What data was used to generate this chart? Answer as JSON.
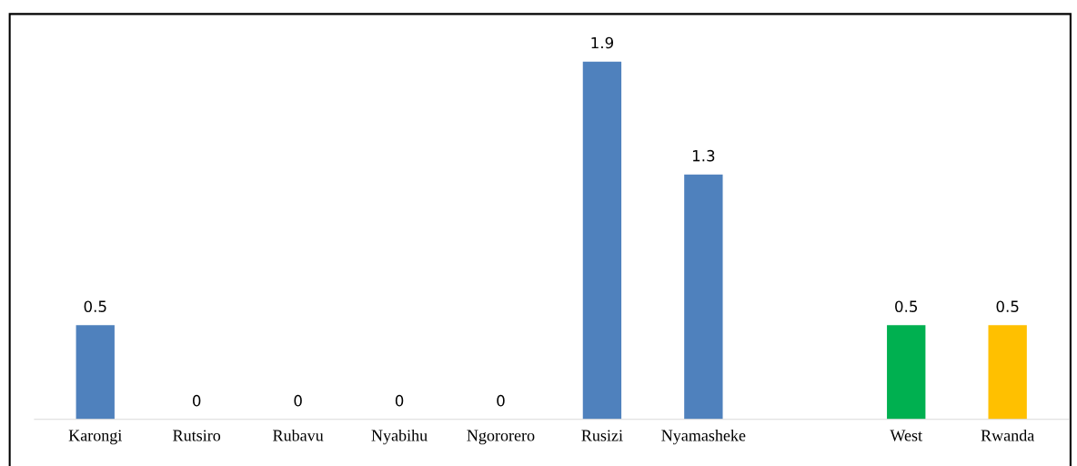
{
  "chart_data": {
    "type": "bar",
    "categories": [
      "Karongi",
      "Rutsiro",
      "Rubavu",
      "Nyabihu",
      "Ngororero",
      "Rusizi",
      "Nyamasheke",
      null,
      "West",
      "Rwanda"
    ],
    "values": [
      0.5,
      0,
      0,
      0,
      0,
      1.9,
      1.3,
      null,
      0.5,
      0.5
    ],
    "colors": [
      "#4f81bd",
      "#4f81bd",
      "#4f81bd",
      "#4f81bd",
      "#4f81bd",
      "#4f81bd",
      "#4f81bd",
      "#4f81bd",
      "#00b050",
      "#ffc000"
    ],
    "data_labels": true,
    "grid": false,
    "legend": false,
    "tick_labels": "x"
  }
}
